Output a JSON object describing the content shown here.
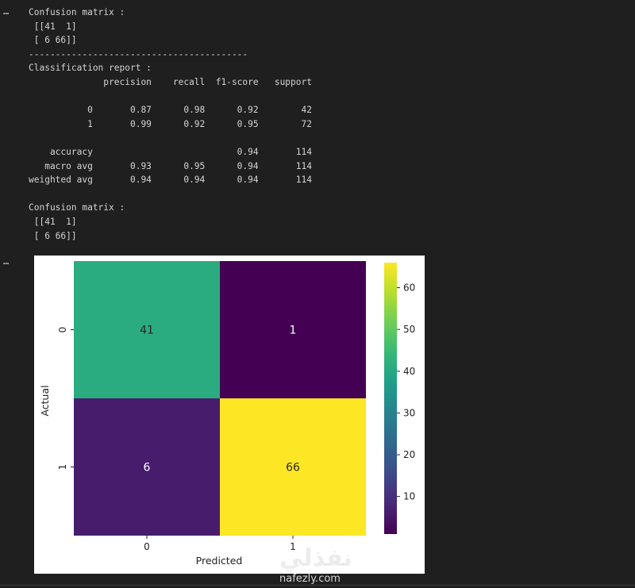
{
  "cell_output": {
    "ellipsis": "…",
    "lines": [
      "Confusion matrix :",
      " [[41  1]",
      " [ 6 66]]",
      "-----------------------------------------",
      "Classification report :",
      "              precision    recall  f1-score   support",
      "",
      "           0       0.87      0.98      0.92        42",
      "           1       0.99      0.92      0.95        72",
      "",
      "    accuracy                           0.94       114",
      "   macro avg       0.93      0.95      0.94       114",
      "weighted avg       0.94      0.94      0.94       114",
      "",
      "Confusion matrix :",
      " [[41  1]",
      " [ 6 66]]"
    ]
  },
  "chart_data": {
    "type": "heatmap",
    "colormap": "viridis",
    "xlabel": "Predicted",
    "ylabel": "Actual",
    "x_ticks": [
      "0",
      "1"
    ],
    "y_ticks": [
      "0",
      "1"
    ],
    "values": [
      [
        41,
        1
      ],
      [
        6,
        66
      ]
    ],
    "colorbar": {
      "range": [
        1,
        66
      ],
      "ticks": [
        "10",
        "20",
        "30",
        "40",
        "50",
        "60"
      ]
    }
  },
  "watermark": {
    "arabic": "نفذلي",
    "latin": "nafezly.com"
  }
}
